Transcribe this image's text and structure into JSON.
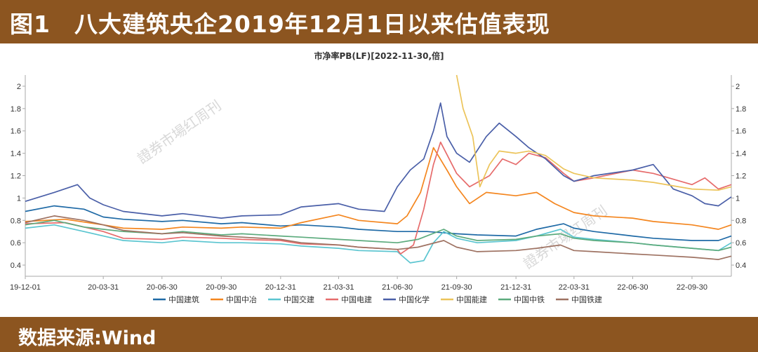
{
  "header": {
    "title": "图1　八大建筑央企2019年12月1日以来估值表现"
  },
  "footer": {
    "source": "数据来源:Wind"
  },
  "watermark": {
    "text": "證券市場红周刊"
  },
  "chart_data": {
    "type": "line",
    "title": "市净率PB(LF)[2022-11-30,倍]",
    "x_ticks": [
      "19-12-01",
      "20-03-31",
      "20-06-30",
      "20-09-30",
      "20-12-31",
      "21-03-31",
      "21-06-30",
      "21-09-30",
      "21-12-31",
      "22-03-31",
      "22-06-30",
      "22-09-30"
    ],
    "x_range": [
      "2019-12-01",
      "2022-11-30"
    ],
    "y_ticks": [
      0.4,
      0.6,
      0.8,
      1,
      1.2,
      1.4,
      1.6,
      1.8,
      2
    ],
    "y_tick_labels": [
      "0.4",
      "0.6",
      "0.8",
      "1",
      "1.2",
      "1.4",
      "1.6",
      "1.8",
      "2"
    ],
    "ylim": [
      0.3,
      2.1
    ],
    "grid": false,
    "legend_position": "bottom",
    "series": [
      {
        "name": "中国建筑",
        "color": "#1f6aa6",
        "points": [
          [
            "2019-12-01",
            0.88
          ],
          [
            "2020-01-15",
            0.93
          ],
          [
            "2020-03-01",
            0.9
          ],
          [
            "2020-03-31",
            0.83
          ],
          [
            "2020-05-01",
            0.81
          ],
          [
            "2020-06-30",
            0.79
          ],
          [
            "2020-08-01",
            0.8
          ],
          [
            "2020-09-30",
            0.77
          ],
          [
            "2020-11-01",
            0.78
          ],
          [
            "2020-12-31",
            0.75
          ],
          [
            "2021-02-01",
            0.76
          ],
          [
            "2021-03-31",
            0.74
          ],
          [
            "2021-05-01",
            0.72
          ],
          [
            "2021-06-30",
            0.7
          ],
          [
            "2021-08-15",
            0.7
          ],
          [
            "2021-09-30",
            0.68
          ],
          [
            "2021-11-01",
            0.67
          ],
          [
            "2021-12-31",
            0.66
          ],
          [
            "2022-02-01",
            0.72
          ],
          [
            "2022-03-15",
            0.77
          ],
          [
            "2022-03-31",
            0.73
          ],
          [
            "2022-05-01",
            0.7
          ],
          [
            "2022-06-30",
            0.66
          ],
          [
            "2022-08-01",
            0.64
          ],
          [
            "2022-09-30",
            0.62
          ],
          [
            "2022-11-10",
            0.62
          ],
          [
            "2022-11-30",
            0.66
          ]
        ]
      },
      {
        "name": "中国中冶",
        "color": "#f4861f",
        "points": [
          [
            "2019-12-01",
            0.79
          ],
          [
            "2020-02-01",
            0.81
          ],
          [
            "2020-03-31",
            0.76
          ],
          [
            "2020-05-01",
            0.73
          ],
          [
            "2020-06-30",
            0.72
          ],
          [
            "2020-08-01",
            0.74
          ],
          [
            "2020-09-30",
            0.73
          ],
          [
            "2020-11-01",
            0.74
          ],
          [
            "2020-12-31",
            0.73
          ],
          [
            "2021-02-01",
            0.78
          ],
          [
            "2021-03-31",
            0.85
          ],
          [
            "2021-05-01",
            0.8
          ],
          [
            "2021-06-30",
            0.77
          ],
          [
            "2021-07-15",
            0.84
          ],
          [
            "2021-08-05",
            1.05
          ],
          [
            "2021-08-25",
            1.45
          ],
          [
            "2021-09-15",
            1.25
          ],
          [
            "2021-09-30",
            1.1
          ],
          [
            "2021-10-20",
            0.95
          ],
          [
            "2021-11-15",
            1.05
          ],
          [
            "2021-12-31",
            1.02
          ],
          [
            "2022-02-01",
            1.05
          ],
          [
            "2022-03-01",
            0.95
          ],
          [
            "2022-03-31",
            0.87
          ],
          [
            "2022-05-01",
            0.84
          ],
          [
            "2022-06-30",
            0.82
          ],
          [
            "2022-08-01",
            0.79
          ],
          [
            "2022-09-30",
            0.76
          ],
          [
            "2022-11-10",
            0.72
          ],
          [
            "2022-11-30",
            0.76
          ]
        ]
      },
      {
        "name": "中国交建",
        "color": "#5bc5d0",
        "points": [
          [
            "2019-12-01",
            0.73
          ],
          [
            "2020-01-15",
            0.76
          ],
          [
            "2020-03-01",
            0.7
          ],
          [
            "2020-03-31",
            0.66
          ],
          [
            "2020-05-01",
            0.62
          ],
          [
            "2020-06-30",
            0.6
          ],
          [
            "2020-08-01",
            0.62
          ],
          [
            "2020-09-30",
            0.6
          ],
          [
            "2020-11-01",
            0.6
          ],
          [
            "2020-12-31",
            0.59
          ],
          [
            "2021-02-01",
            0.57
          ],
          [
            "2021-03-31",
            0.55
          ],
          [
            "2021-05-01",
            0.53
          ],
          [
            "2021-06-30",
            0.52
          ],
          [
            "2021-07-20",
            0.42
          ],
          [
            "2021-08-10",
            0.44
          ],
          [
            "2021-08-25",
            0.6
          ],
          [
            "2021-09-10",
            0.7
          ],
          [
            "2021-09-30",
            0.64
          ],
          [
            "2021-11-01",
            0.6
          ],
          [
            "2021-12-31",
            0.62
          ],
          [
            "2022-02-01",
            0.66
          ],
          [
            "2022-03-10",
            0.72
          ],
          [
            "2022-03-31",
            0.65
          ],
          [
            "2022-05-01",
            0.63
          ],
          [
            "2022-06-30",
            0.6
          ],
          [
            "2022-08-01",
            0.58
          ],
          [
            "2022-09-30",
            0.55
          ],
          [
            "2022-11-10",
            0.53
          ],
          [
            "2022-11-30",
            0.6
          ]
        ]
      },
      {
        "name": "中国电建",
        "color": "#e66b6b",
        "points": [
          [
            "2019-12-01",
            0.77
          ],
          [
            "2020-02-01",
            0.78
          ],
          [
            "2020-03-31",
            0.7
          ],
          [
            "2020-05-01",
            0.64
          ],
          [
            "2020-06-30",
            0.63
          ],
          [
            "2020-08-01",
            0.65
          ],
          [
            "2020-09-30",
            0.64
          ],
          [
            "2020-11-01",
            0.63
          ],
          [
            "2020-12-31",
            0.62
          ],
          [
            "2021-02-01",
            0.59
          ],
          [
            "2021-03-31",
            0.58
          ],
          [
            "2021-05-01",
            0.56
          ],
          [
            "2021-06-30",
            0.54
          ],
          [
            "2021-07-05",
            0.5
          ],
          [
            "2021-07-25",
            0.58
          ],
          [
            "2021-08-10",
            0.9
          ],
          [
            "2021-08-25",
            1.3
          ],
          [
            "2021-09-05",
            1.5
          ],
          [
            "2021-09-30",
            1.22
          ],
          [
            "2021-10-20",
            1.1
          ],
          [
            "2021-11-20",
            1.2
          ],
          [
            "2021-12-10",
            1.35
          ],
          [
            "2021-12-31",
            1.3
          ],
          [
            "2022-01-20",
            1.4
          ],
          [
            "2022-02-15",
            1.36
          ],
          [
            "2022-03-15",
            1.22
          ],
          [
            "2022-03-31",
            1.15
          ],
          [
            "2022-05-01",
            1.18
          ],
          [
            "2022-06-30",
            1.25
          ],
          [
            "2022-08-01",
            1.22
          ],
          [
            "2022-09-30",
            1.12
          ],
          [
            "2022-10-20",
            1.18
          ],
          [
            "2022-11-10",
            1.08
          ],
          [
            "2022-11-30",
            1.12
          ]
        ]
      },
      {
        "name": "中国化学",
        "color": "#4a5fa8",
        "points": [
          [
            "2019-12-01",
            0.97
          ],
          [
            "2020-01-15",
            1.05
          ],
          [
            "2020-02-20",
            1.12
          ],
          [
            "2020-03-10",
            1.0
          ],
          [
            "2020-03-31",
            0.94
          ],
          [
            "2020-05-01",
            0.88
          ],
          [
            "2020-06-30",
            0.84
          ],
          [
            "2020-08-01",
            0.86
          ],
          [
            "2020-09-30",
            0.82
          ],
          [
            "2020-11-01",
            0.84
          ],
          [
            "2020-12-31",
            0.85
          ],
          [
            "2021-02-01",
            0.92
          ],
          [
            "2021-03-31",
            0.95
          ],
          [
            "2021-05-01",
            0.9
          ],
          [
            "2021-06-10",
            0.88
          ],
          [
            "2021-06-30",
            1.1
          ],
          [
            "2021-07-20",
            1.25
          ],
          [
            "2021-08-10",
            1.35
          ],
          [
            "2021-08-25",
            1.6
          ],
          [
            "2021-09-05",
            1.85
          ],
          [
            "2021-09-15",
            1.55
          ],
          [
            "2021-09-30",
            1.4
          ],
          [
            "2021-10-20",
            1.32
          ],
          [
            "2021-11-15",
            1.55
          ],
          [
            "2021-12-05",
            1.67
          ],
          [
            "2021-12-31",
            1.55
          ],
          [
            "2022-01-20",
            1.45
          ],
          [
            "2022-02-15",
            1.35
          ],
          [
            "2022-03-15",
            1.2
          ],
          [
            "2022-03-31",
            1.15
          ],
          [
            "2022-05-01",
            1.2
          ],
          [
            "2022-06-30",
            1.25
          ],
          [
            "2022-08-01",
            1.3
          ],
          [
            "2022-09-01",
            1.08
          ],
          [
            "2022-09-30",
            1.02
          ],
          [
            "2022-10-20",
            0.95
          ],
          [
            "2022-11-10",
            0.93
          ],
          [
            "2022-11-30",
            1.01
          ]
        ]
      },
      {
        "name": "中国能建",
        "color": "#ecc45a",
        "points": [
          [
            "2021-09-30",
            2.1
          ],
          [
            "2021-10-10",
            1.8
          ],
          [
            "2021-10-25",
            1.55
          ],
          [
            "2021-11-05",
            1.1
          ],
          [
            "2021-11-20",
            1.3
          ],
          [
            "2021-12-05",
            1.42
          ],
          [
            "2021-12-31",
            1.4
          ],
          [
            "2022-01-20",
            1.42
          ],
          [
            "2022-02-15",
            1.38
          ],
          [
            "2022-03-15",
            1.26
          ],
          [
            "2022-03-31",
            1.22
          ],
          [
            "2022-05-01",
            1.18
          ],
          [
            "2022-06-30",
            1.16
          ],
          [
            "2022-08-01",
            1.14
          ],
          [
            "2022-09-30",
            1.08
          ],
          [
            "2022-11-10",
            1.07
          ],
          [
            "2022-11-30",
            1.1
          ]
        ]
      },
      {
        "name": "中国中铁",
        "color": "#5cab7d",
        "points": [
          [
            "2019-12-01",
            0.76
          ],
          [
            "2020-01-15",
            0.8
          ],
          [
            "2020-03-01",
            0.74
          ],
          [
            "2020-03-31",
            0.72
          ],
          [
            "2020-05-01",
            0.7
          ],
          [
            "2020-06-30",
            0.68
          ],
          [
            "2020-08-01",
            0.7
          ],
          [
            "2020-09-30",
            0.67
          ],
          [
            "2020-11-01",
            0.68
          ],
          [
            "2020-12-31",
            0.66
          ],
          [
            "2021-02-01",
            0.65
          ],
          [
            "2021-03-31",
            0.63
          ],
          [
            "2021-05-01",
            0.62
          ],
          [
            "2021-06-30",
            0.6
          ],
          [
            "2021-08-01",
            0.63
          ],
          [
            "2021-09-10",
            0.72
          ],
          [
            "2021-09-30",
            0.66
          ],
          [
            "2021-11-01",
            0.62
          ],
          [
            "2021-12-31",
            0.63
          ],
          [
            "2022-02-01",
            0.66
          ],
          [
            "2022-03-10",
            0.68
          ],
          [
            "2022-03-31",
            0.64
          ],
          [
            "2022-05-01",
            0.62
          ],
          [
            "2022-06-30",
            0.6
          ],
          [
            "2022-08-01",
            0.58
          ],
          [
            "2022-09-30",
            0.55
          ],
          [
            "2022-11-10",
            0.53
          ],
          [
            "2022-11-30",
            0.56
          ]
        ]
      },
      {
        "name": "中国铁建",
        "color": "#9e7262",
        "points": [
          [
            "2019-12-01",
            0.78
          ],
          [
            "2020-01-15",
            0.84
          ],
          [
            "2020-03-01",
            0.8
          ],
          [
            "2020-03-31",
            0.76
          ],
          [
            "2020-05-01",
            0.71
          ],
          [
            "2020-06-30",
            0.68
          ],
          [
            "2020-08-01",
            0.69
          ],
          [
            "2020-09-30",
            0.66
          ],
          [
            "2020-11-01",
            0.65
          ],
          [
            "2020-12-31",
            0.63
          ],
          [
            "2021-02-01",
            0.6
          ],
          [
            "2021-03-31",
            0.58
          ],
          [
            "2021-05-01",
            0.56
          ],
          [
            "2021-06-30",
            0.54
          ],
          [
            "2021-08-01",
            0.56
          ],
          [
            "2021-09-10",
            0.62
          ],
          [
            "2021-09-30",
            0.56
          ],
          [
            "2021-11-01",
            0.52
          ],
          [
            "2021-12-31",
            0.53
          ],
          [
            "2022-02-01",
            0.55
          ],
          [
            "2022-03-10",
            0.58
          ],
          [
            "2022-03-31",
            0.53
          ],
          [
            "2022-05-01",
            0.52
          ],
          [
            "2022-06-30",
            0.5
          ],
          [
            "2022-08-01",
            0.49
          ],
          [
            "2022-09-30",
            0.47
          ],
          [
            "2022-11-10",
            0.45
          ],
          [
            "2022-11-30",
            0.48
          ]
        ]
      }
    ]
  }
}
